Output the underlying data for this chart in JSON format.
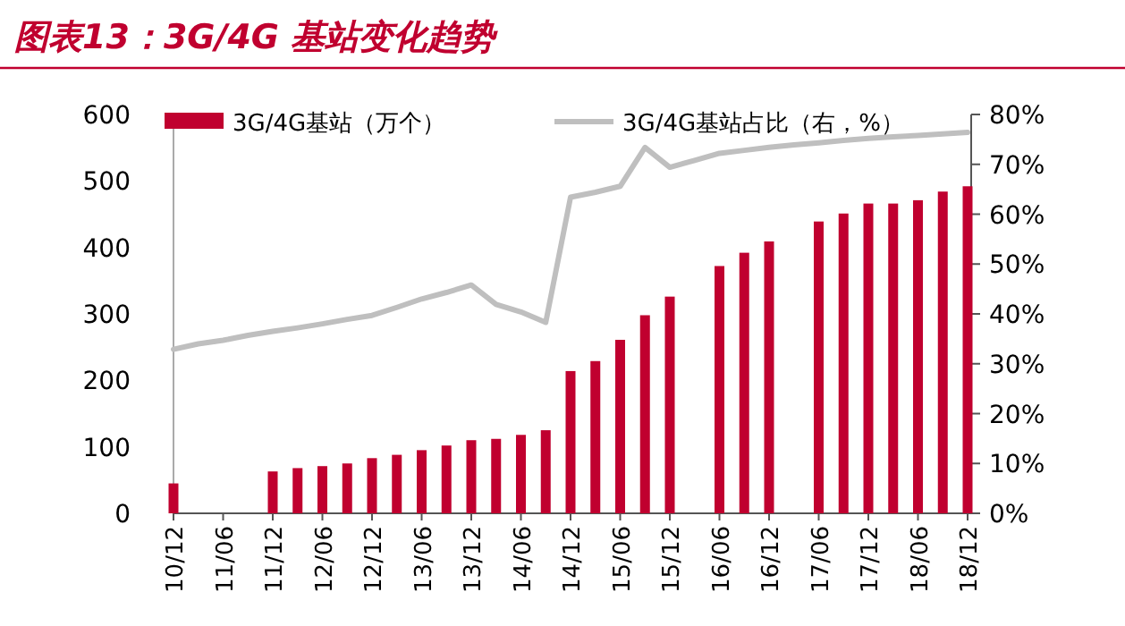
{
  "chart_data": {
    "type": "bar",
    "title": "图表13：3G/4G 基站变化趋势",
    "categories": [
      "10/12",
      null,
      "11/06",
      null,
      "11/12",
      null,
      "12/06",
      null,
      "12/12",
      null,
      "13/06",
      null,
      "13/12",
      null,
      "14/06",
      null,
      "14/12",
      null,
      "15/06",
      null,
      "15/12",
      null,
      "16/06",
      null,
      "16/12",
      null,
      "17/06",
      null,
      "17/12",
      null,
      "18/06",
      null,
      "18/12"
    ],
    "series": [
      {
        "name": "3G/4G基站（万个）",
        "color": "#c0002f",
        "values": [
          45,
          null,
          null,
          null,
          63,
          68,
          71,
          75,
          83,
          88,
          95,
          102,
          110,
          112,
          118,
          125,
          214,
          229,
          261,
          298,
          326,
          null,
          372,
          392,
          409,
          null,
          439,
          451,
          466,
          466,
          471,
          484,
          492
        ]
      },
      {
        "type": "line",
        "name": "3G/4G基站占比（右，%）",
        "color": "#bfbfbf",
        "axis": "y2",
        "values": [
          32.9,
          34.0,
          34.7,
          35.7,
          36.5,
          37.2,
          38.0,
          38.9,
          39.7,
          41.3,
          43.0,
          44.3,
          45.8,
          41.9,
          40.4,
          38.3,
          63.4,
          64.4,
          65.6,
          73.4,
          69.4,
          70.8,
          72.2,
          72.8,
          73.4,
          73.9,
          74.3,
          74.8,
          75.2,
          75.5,
          75.8,
          76.1,
          76.4
        ]
      }
    ],
    "ylim": [
      0,
      600
    ],
    "yticks": [
      0,
      100,
      200,
      300,
      400,
      500,
      600
    ],
    "y2lim": [
      0,
      80
    ],
    "y2ticks": [
      {
        "value": 0,
        "label": "0%"
      },
      {
        "value": 10,
        "label": "10%"
      },
      {
        "value": 20,
        "label": "20%"
      },
      {
        "value": 30,
        "label": "30%"
      },
      {
        "value": 40,
        "label": "40%"
      },
      {
        "value": 50,
        "label": "50%"
      },
      {
        "value": 60,
        "label": "60%"
      },
      {
        "value": 70,
        "label": "70%"
      },
      {
        "value": 80,
        "label": "80%"
      }
    ],
    "legend": "top"
  }
}
